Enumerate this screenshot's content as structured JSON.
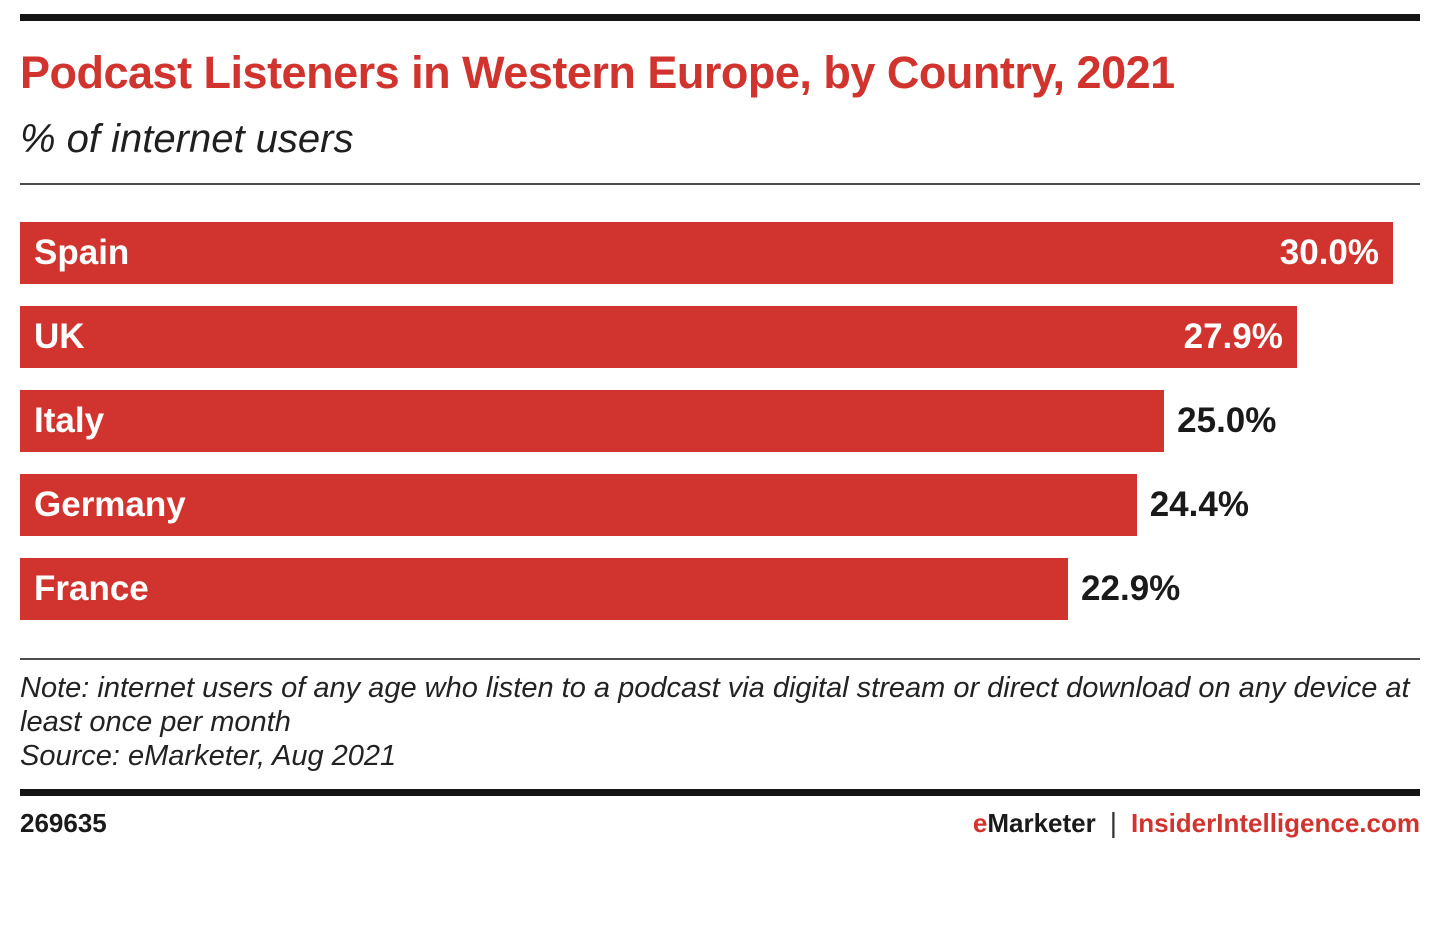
{
  "header": {
    "title": "Podcast Listeners in Western Europe, by Country, 2021",
    "subtitle": "% of internet users"
  },
  "chart_data": {
    "type": "bar",
    "orientation": "horizontal",
    "title": "Podcast Listeners in Western Europe, by Country, 2021",
    "subtitle": "% of internet users",
    "unit": "% of internet users",
    "categories": [
      "Spain",
      "UK",
      "Italy",
      "Germany",
      "France"
    ],
    "values": [
      30.0,
      27.9,
      25.0,
      24.4,
      22.9
    ],
    "value_labels": [
      "30.0%",
      "27.9%",
      "25.0%",
      "24.4%",
      "22.9%"
    ],
    "value_label_position": [
      "inside",
      "inside",
      "outside",
      "outside",
      "outside"
    ],
    "xlim": [
      0,
      30.0
    ],
    "xmax": 30.0,
    "grid": false,
    "legend": false,
    "bar_color": "#d1332e"
  },
  "notes": {
    "note": "Note: internet users of any age who listen to a podcast via digital stream or direct download on any device at least once per month",
    "source": "Source: eMarketer, Aug 2021"
  },
  "footer": {
    "chart_id": "269635",
    "brand_e": "e",
    "brand_marketer": "Marketer",
    "divider": "|",
    "site": "InsiderIntelligence.com"
  },
  "colors": {
    "brand_red": "#d1332e",
    "text_black": "#1f1f1f",
    "rule_dark": "#151515",
    "rule_gray": "#4d4d4d"
  }
}
